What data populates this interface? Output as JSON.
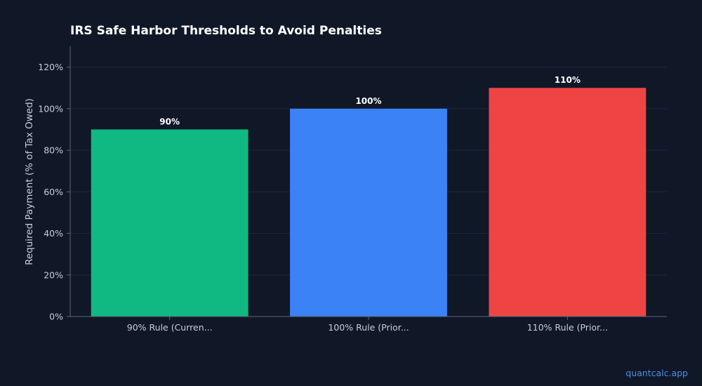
{
  "chart_data": {
    "type": "bar",
    "title": "IRS Safe Harbor Thresholds to Avoid Penalties",
    "xlabel": "",
    "ylabel": "Required Payment (% of Tax Owed)",
    "categories": [
      "90% Rule (Curren...",
      "100% Rule (Prior...",
      "110% Rule (Prior..."
    ],
    "values": [
      90,
      100,
      110
    ],
    "data_labels": [
      "90%",
      "100%",
      "110%"
    ],
    "colors": [
      "#10b981",
      "#3b82f6",
      "#ef4444"
    ],
    "ylim": [
      0,
      130
    ],
    "yticks": [
      0,
      20,
      40,
      60,
      80,
      100,
      120
    ],
    "ytick_labels": [
      "0%",
      "20%",
      "40%",
      "60%",
      "80%",
      "100%",
      "120%"
    ],
    "grid": true,
    "legend": "none"
  },
  "watermark": "quantcalc.app",
  "colors": {
    "background": "#101828",
    "grid": "#1c2638",
    "axis": "#5b6678",
    "text": "#c7cdd6"
  }
}
